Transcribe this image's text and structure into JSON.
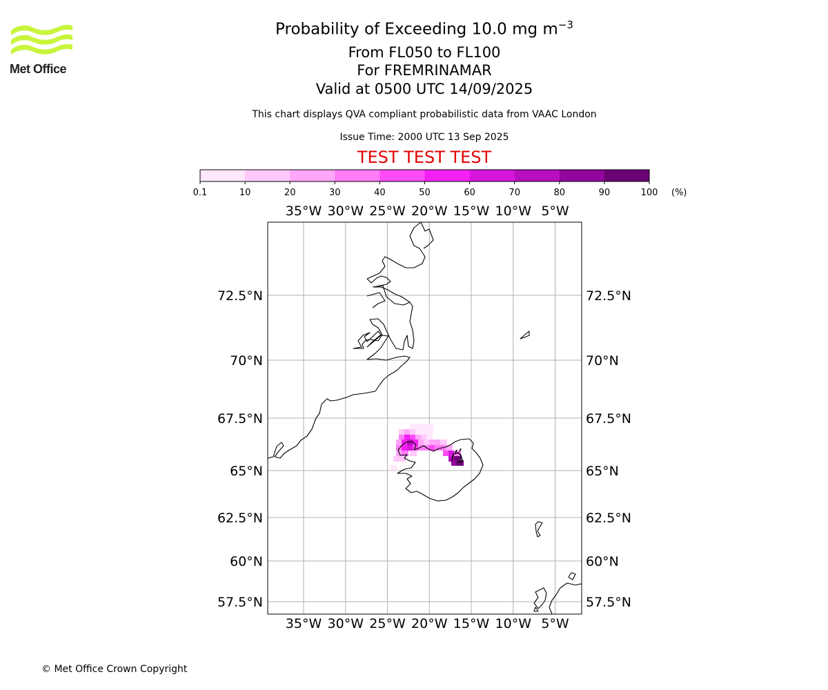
{
  "logo": {
    "text": "Met Office",
    "wave_color": "#c8f53c"
  },
  "header": {
    "title_main": "Probability of Exceeding 10.0 mg m",
    "title_exp": "−3",
    "levels": "From FL050 to FL100",
    "location": "For FREMRINAMAR",
    "valid": "Valid at 0500 UTC 14/09/2025",
    "note": "This chart displays QVA compliant probabilistic data from VAAC London",
    "issue": "Issue Time: 2000 UTC 13 Sep 2025",
    "test": "TEST TEST TEST"
  },
  "colorbar": {
    "ticks": [
      "0.1",
      "10",
      "20",
      "30",
      "40",
      "50",
      "60",
      "70",
      "80",
      "90",
      "100"
    ],
    "unit": "(%)",
    "colors": [
      "#ffe8fd",
      "#ffc9fb",
      "#ffa6f8",
      "#ff7df6",
      "#ff4cf6",
      "#f520f5",
      "#d716dc",
      "#b80ebf",
      "#92069b",
      "#6a0373"
    ]
  },
  "map": {
    "lon_ticks": [
      -35,
      -30,
      -25,
      -20,
      -15,
      -10,
      -5
    ],
    "lon_labels": [
      "35°W",
      "30°W",
      "25°W",
      "20°W",
      "15°W",
      "10°W",
      "5°W"
    ],
    "lat_ticks": [
      72.5,
      70,
      67.5,
      65,
      62.5,
      60,
      57.5
    ],
    "lat_labels": [
      "72.5°N",
      "70°N",
      "67.5°N",
      "65°N",
      "62.5°N",
      "60°N",
      "57.5°N"
    ],
    "grid": true,
    "plume_max_level_pct": 100
  },
  "footer": {
    "copyright": "© Met Office Crown Copyright"
  }
}
